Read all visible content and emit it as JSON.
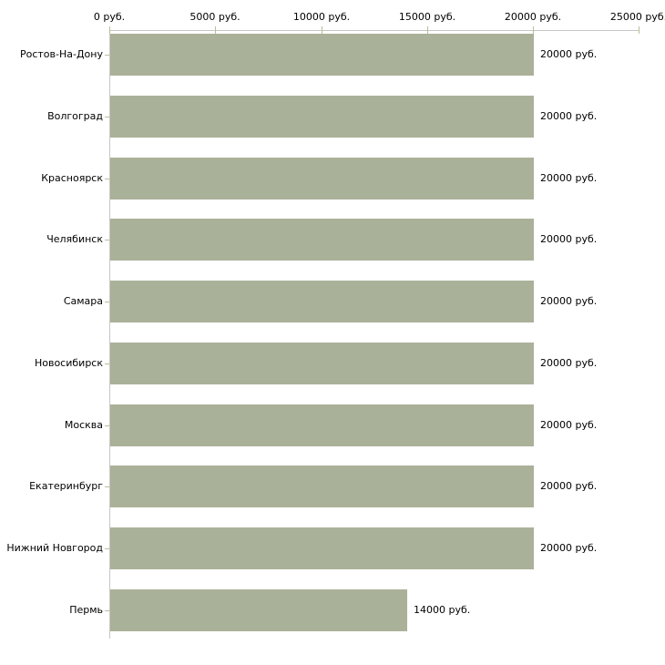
{
  "chart_data": {
    "type": "bar",
    "orientation": "horizontal",
    "title": "",
    "xlabel": "",
    "ylabel": "",
    "unit": "руб.",
    "categories": [
      "Ростов-На-Дону",
      "Волгоград",
      "Красноярск",
      "Челябинск",
      "Самара",
      "Новосибирск",
      "Москва",
      "Екатеринбург",
      "Нижний Новгород",
      "Пермь"
    ],
    "values": [
      20000,
      20000,
      20000,
      20000,
      20000,
      20000,
      20000,
      20000,
      20000,
      14000
    ],
    "value_labels": [
      "20000 руб.",
      "20000 руб.",
      "20000 руб.",
      "20000 руб.",
      "20000 руб.",
      "20000 руб.",
      "20000 руб.",
      "20000 руб.",
      "20000 руб.",
      "14000 руб."
    ],
    "x_axis": {
      "position": "top",
      "min": 0,
      "max": 25000,
      "ticks": [
        0,
        5000,
        10000,
        15000,
        20000,
        25000
      ],
      "tick_labels": [
        "0 руб.",
        "5000 руб.",
        "10000 руб.",
        "15000 руб.",
        "20000 руб.",
        "25000 руб."
      ]
    },
    "legend": null,
    "grid": false,
    "colors": {
      "bar": "#aab199",
      "axis": "#c6c6c6",
      "tick": "#bcbc9a",
      "text": "#000000",
      "background": "#ffffff"
    }
  }
}
